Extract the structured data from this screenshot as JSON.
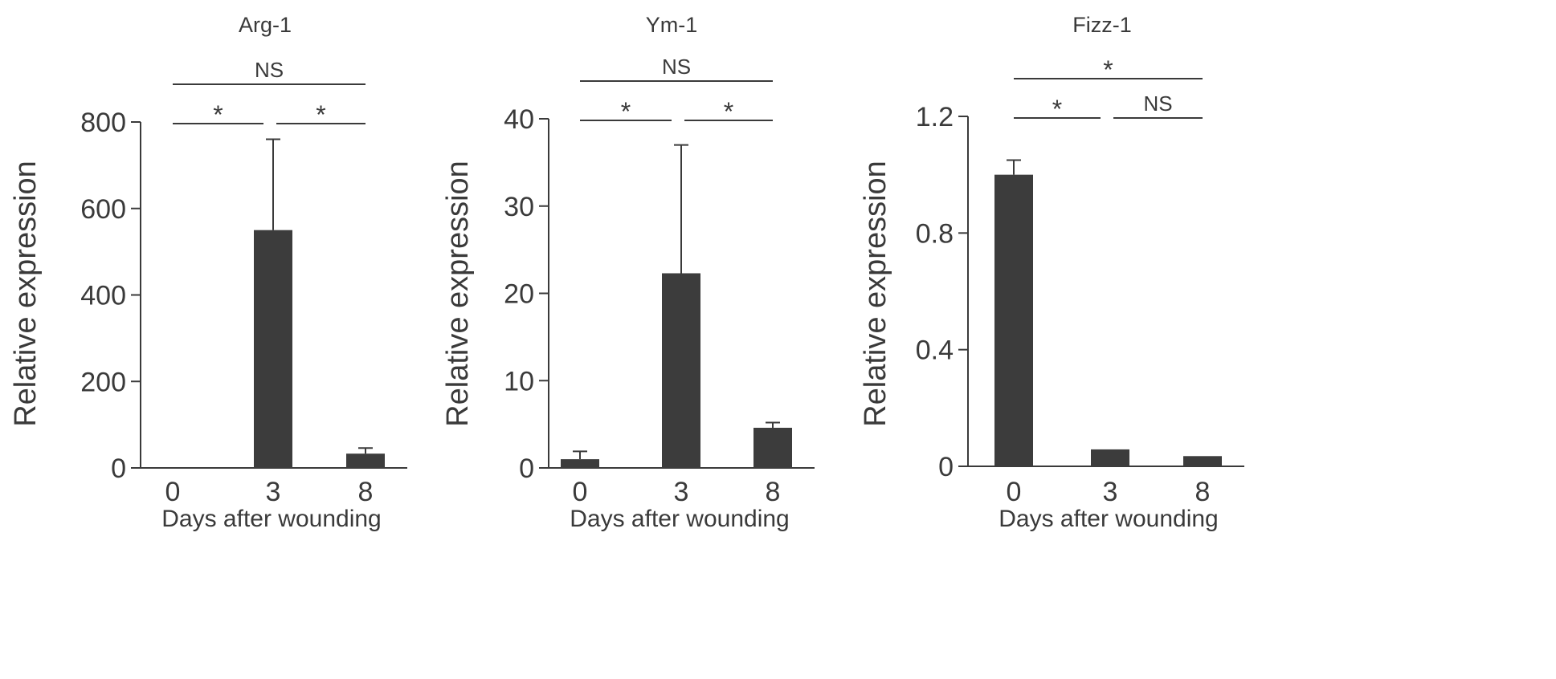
{
  "colors": {
    "bar": "#3c3c3c",
    "axis": "#3a3a3a",
    "background": "#ffffff"
  },
  "chart_data": [
    {
      "type": "bar",
      "title": "Arg-1",
      "xlabel": "Days after wounding",
      "ylabel": "Relative expression",
      "categories": [
        "0",
        "3",
        "8"
      ],
      "values": [
        1,
        550,
        33
      ],
      "errors": [
        0,
        210,
        13
      ],
      "ylim": [
        0,
        800
      ],
      "yticks": [
        0,
        200,
        400,
        600,
        800
      ],
      "ytick_labels": [
        "0",
        "200",
        "400",
        "600",
        "800"
      ],
      "significance": [
        {
          "from": 0,
          "to": 1,
          "label": "*",
          "level": 1
        },
        {
          "from": 1,
          "to": 2,
          "label": "*",
          "level": 1
        },
        {
          "from": 0,
          "to": 2,
          "label": "NS",
          "level": 2
        }
      ]
    },
    {
      "type": "bar",
      "title": "Ym-1",
      "xlabel": "Days after wounding",
      "ylabel": "Relative expression",
      "categories": [
        "0",
        "3",
        "8"
      ],
      "values": [
        1,
        22.3,
        4.6
      ],
      "errors": [
        0.9,
        14.7,
        0.6
      ],
      "ylim": [
        0,
        40
      ],
      "yticks": [
        0,
        10,
        20,
        30,
        40
      ],
      "ytick_labels": [
        "0",
        "10",
        "20",
        "30",
        "40"
      ],
      "significance": [
        {
          "from": 0,
          "to": 1,
          "label": "*",
          "level": 1
        },
        {
          "from": 1,
          "to": 2,
          "label": "*",
          "level": 1
        },
        {
          "from": 0,
          "to": 2,
          "label": "NS",
          "level": 2
        }
      ]
    },
    {
      "type": "bar",
      "title": "Fizz-1",
      "xlabel": "Days after wounding",
      "ylabel": "Relative expression",
      "categories": [
        "0",
        "3",
        "8"
      ],
      "values": [
        1.0,
        0.058,
        0.035
      ],
      "errors": [
        0.05,
        0,
        0
      ],
      "ylim": [
        0,
        1.2
      ],
      "yticks": [
        0,
        0.4,
        0.8,
        1.2
      ],
      "ytick_labels": [
        "0",
        "0.4",
        "0.8",
        "1.2"
      ],
      "significance": [
        {
          "from": 0,
          "to": 1,
          "label": "*",
          "level": 1
        },
        {
          "from": 1,
          "to": 2,
          "label": "NS",
          "level": 1
        },
        {
          "from": 0,
          "to": 2,
          "label": "*",
          "level": 2
        }
      ]
    }
  ]
}
